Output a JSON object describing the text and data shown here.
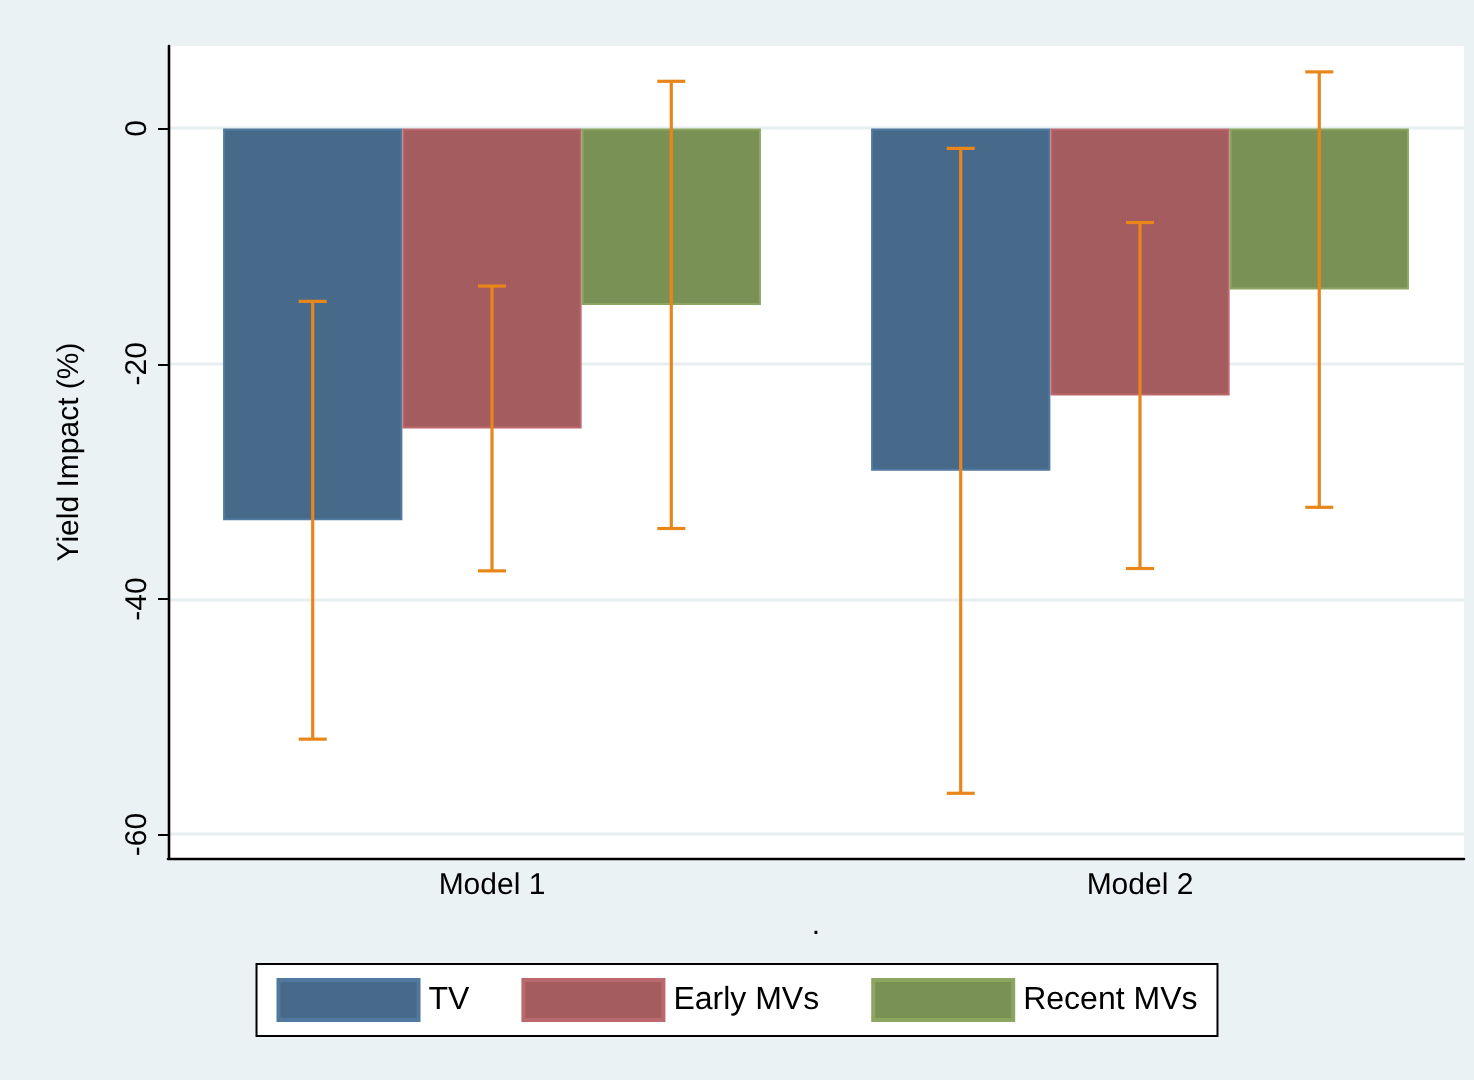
{
  "chart_data": {
    "type": "bar",
    "ylabel": "Yield Impact (%)",
    "xlabel": ".",
    "categories": [
      "Model 1",
      "Model 2"
    ],
    "series": [
      {
        "name": "TV",
        "color": "#476a8b",
        "values": [
          -33.3,
          -29.1
        ],
        "errors": [
          18.6,
          27.4
        ]
      },
      {
        "name": "Early MVs",
        "color": "#a45c5f",
        "values": [
          -25.5,
          -22.7
        ],
        "errors": [
          12.1,
          14.7
        ]
      },
      {
        "name": "Recent MVs",
        "color": "#7a9155",
        "values": [
          -15.0,
          -13.7
        ],
        "errors": [
          19.0,
          18.5
        ]
      }
    ],
    "ylim": [
      -62,
      7
    ],
    "yticks": [
      0,
      -20,
      -40,
      -60
    ],
    "grid": "y",
    "legend": "bottom"
  }
}
